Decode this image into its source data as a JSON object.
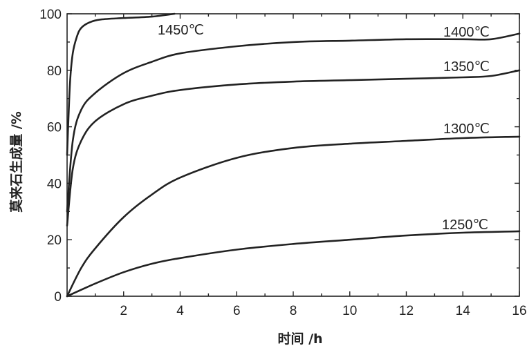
{
  "chart_data": {
    "type": "line",
    "xlabel": "时间 /h",
    "ylabel": "莫来石生成量 /%",
    "xlim": [
      0,
      16
    ],
    "ylim": [
      0,
      100
    ],
    "x_ticks": [
      "2",
      "4",
      "6",
      "8",
      "10",
      "12",
      "14",
      "16"
    ],
    "y_ticks": [
      "0",
      "20",
      "40",
      "60",
      "80",
      "100"
    ],
    "grid": false,
    "legend": "none (curves labeled inline)",
    "line_color": "#222222",
    "series": [
      {
        "name": "1450℃",
        "x": [
          0,
          0.1,
          0.2,
          0.35,
          0.5,
          0.8,
          1.2,
          2.0,
          3.0,
          3.8
        ],
        "y": [
          50,
          75,
          86,
          92,
          95,
          97,
          98,
          98.5,
          99,
          100
        ]
      },
      {
        "name": "1400℃",
        "x": [
          0,
          0.2,
          0.5,
          1,
          2,
          3,
          4,
          6,
          8,
          10,
          12,
          14,
          15,
          16
        ],
        "y": [
          30,
          55,
          66,
          72,
          79,
          83,
          86,
          88.5,
          90,
          90.5,
          91,
          91,
          91,
          93
        ]
      },
      {
        "name": "1350℃",
        "x": [
          0,
          0.2,
          0.5,
          1,
          2,
          3,
          4,
          6,
          8,
          10,
          12,
          14,
          15,
          16
        ],
        "y": [
          25,
          45,
          55,
          62,
          68,
          71,
          73,
          75,
          76,
          76.5,
          77,
          77.5,
          78,
          80
        ]
      },
      {
        "name": "1300℃",
        "x": [
          0,
          0.5,
          1,
          2,
          3,
          4,
          6,
          8,
          10,
          12,
          14,
          16
        ],
        "y": [
          0,
          10,
          17,
          28,
          36,
          42,
          49,
          52.5,
          54,
          55,
          56,
          56.5
        ]
      },
      {
        "name": "1250℃",
        "x": [
          0,
          1,
          2,
          3,
          4,
          6,
          8,
          10,
          12,
          14,
          16
        ],
        "y": [
          0,
          4.5,
          8.5,
          11.5,
          13.5,
          16.5,
          18.5,
          20,
          21.5,
          22.5,
          23
        ]
      }
    ]
  }
}
